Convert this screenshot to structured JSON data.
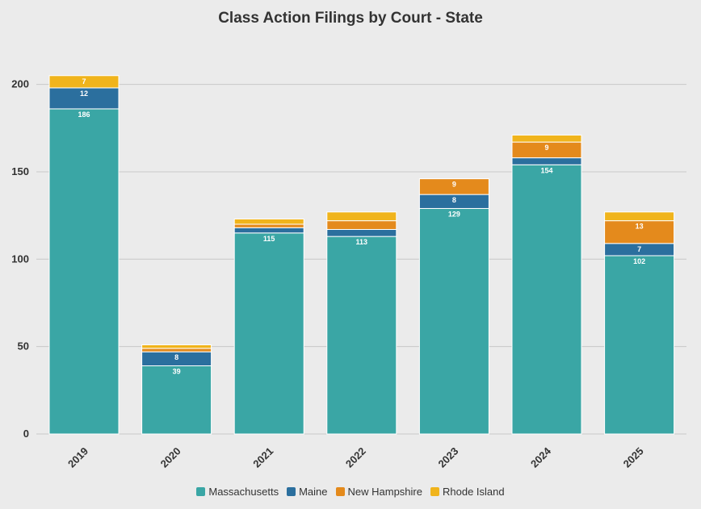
{
  "chart_data": {
    "type": "bar",
    "stacked": true,
    "title": "Class Action Filings by Court - State",
    "xlabel": "",
    "ylabel": "",
    "categories": [
      "2019",
      "2020",
      "2021",
      "2022",
      "2023",
      "2024",
      "2025"
    ],
    "ylim": [
      0,
      220
    ],
    "yticks": [
      "0",
      "50",
      "100",
      "150",
      "200"
    ],
    "grid": true,
    "legend_position": "bottom",
    "series": [
      {
        "name": "Massachusetts",
        "color": "#3aa6a5",
        "values": [
          186,
          39,
          115,
          113,
          129,
          154,
          102
        ],
        "labels": [
          "186",
          "39",
          "115",
          "113",
          "129",
          "154",
          "102"
        ]
      },
      {
        "name": "Maine",
        "color": "#2b6f9e",
        "values": [
          12,
          8,
          3,
          4,
          8,
          4,
          7
        ],
        "labels": [
          "12",
          "8",
          "",
          "",
          "8",
          "",
          "7"
        ]
      },
      {
        "name": "New Hampshire",
        "color": "#e48a1c",
        "values": [
          0,
          2,
          2,
          5,
          9,
          9,
          13
        ],
        "labels": [
          "",
          "",
          "",
          "",
          "9",
          "9",
          "13"
        ]
      },
      {
        "name": "Rhode Island",
        "color": "#f0b41c",
        "values": [
          7,
          2,
          3,
          5,
          0,
          4,
          5
        ],
        "labels": [
          "7",
          "",
          "",
          "",
          "",
          "",
          ""
        ]
      }
    ]
  }
}
